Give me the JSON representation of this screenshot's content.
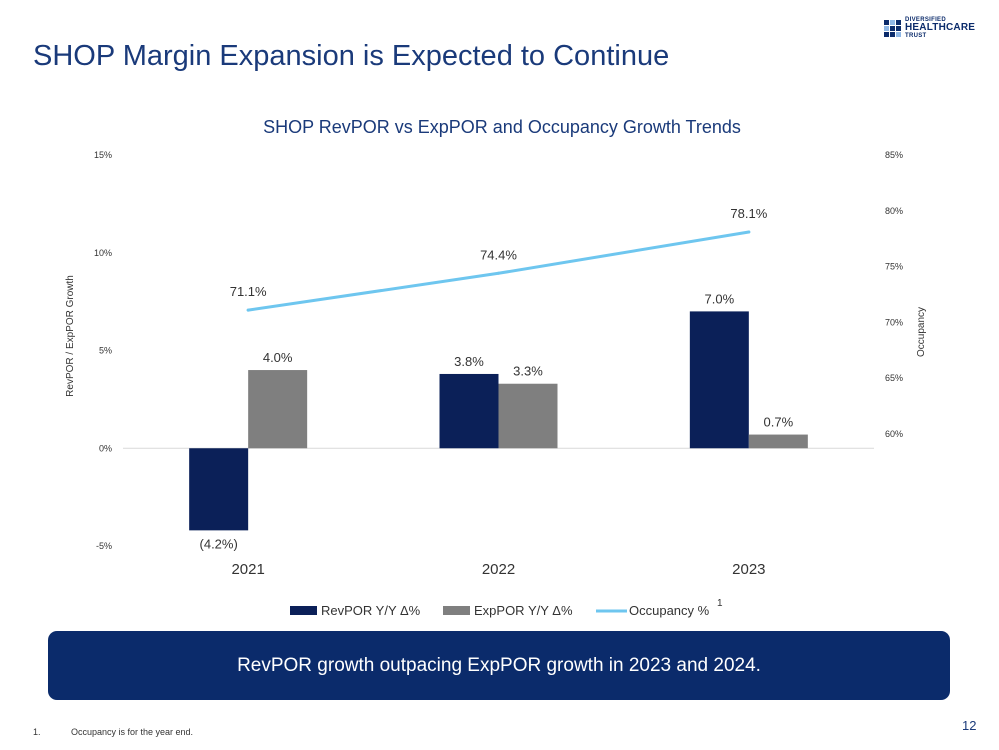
{
  "slide": {
    "title": "SHOP Margin Expansion is Expected to Continue",
    "page_number": "12"
  },
  "logo": {
    "line1": "DIVERSIFIED",
    "line2": "HEALTHCARE",
    "line3": "TRUST"
  },
  "banner": {
    "text": "RevPOR growth outpacing ExpPOR growth in 2023 and 2024."
  },
  "footnote": {
    "number": "1.",
    "text": "Occupancy is for the year end."
  },
  "colors": {
    "revpor": "#0b2058",
    "exppor": "#7f7f7f",
    "occupancy": "#6ec6ef",
    "banner": "#0b2b6b"
  },
  "chart_data": {
    "type": "bar",
    "title": "SHOP RevPOR vs ExpPOR and Occupancy Growth Trends",
    "categories": [
      "2021",
      "2022",
      "2023"
    ],
    "ylabel": "RevPOR / ExpPOR Growth",
    "y2label": "Occupancy",
    "ylim": [
      -5,
      15
    ],
    "yticks": [
      -5,
      0,
      5,
      10,
      15
    ],
    "ytick_labels": [
      "-5%",
      "0%",
      "5%",
      "10%",
      "15%"
    ],
    "y2lim": [
      60,
      85
    ],
    "y2ticks": [
      60,
      65,
      70,
      75,
      80,
      85
    ],
    "y2tick_labels": [
      "60%",
      "65%",
      "70%",
      "75%",
      "80%",
      "85%"
    ],
    "series": [
      {
        "name": "RevPOR Y/Y Δ%",
        "type": "bar",
        "values": [
          -4.2,
          3.8,
          7.0
        ],
        "labels": [
          "(4.2%)",
          "3.8%",
          "7.0%"
        ]
      },
      {
        "name": "ExpPOR Y/Y Δ%",
        "type": "bar",
        "values": [
          4.0,
          3.3,
          0.7
        ],
        "labels": [
          "4.0%",
          "3.3%",
          "0.7%"
        ]
      },
      {
        "name": "Occupancy %",
        "type": "line",
        "axis": "secondary",
        "values": [
          71.1,
          74.4,
          78.1
        ],
        "labels": [
          "71.1%",
          "74.4%",
          "78.1%"
        ]
      }
    ],
    "legend_position": "bottom",
    "legend_footnote_marker": "1",
    "grid": false
  }
}
